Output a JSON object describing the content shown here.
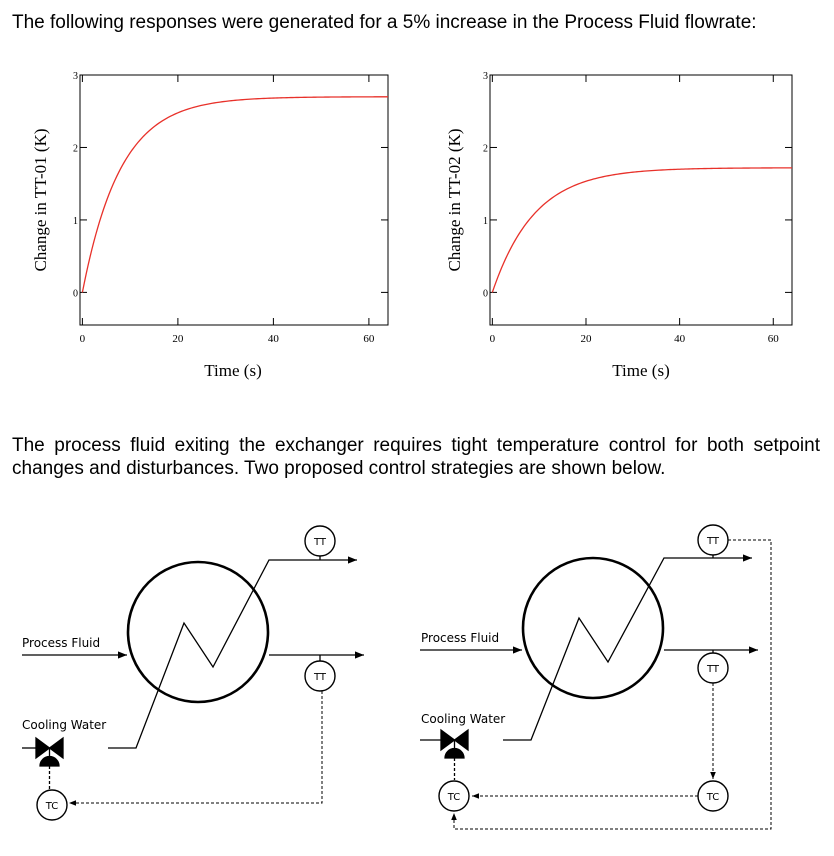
{
  "intro_text": "The following responses were generated for a 5% increase in the Process Fluid flowrate:",
  "strategy_text": "The process fluid exiting the exchanger requires tight temperature control for both setpoint changes and disturbances. Two proposed control strategies are shown below.",
  "chart_data": [
    {
      "type": "line",
      "title": "",
      "xlabel": "Time (s)",
      "ylabel": "Change in TT-01 (K)",
      "xlim": [
        -0.5,
        64
      ],
      "ylim": [
        -0.45,
        3
      ],
      "xticks": [
        0,
        20,
        40,
        60
      ],
      "yticks": [
        0,
        1,
        2,
        3
      ],
      "series": [
        {
          "color": "#e8312a",
          "gain": 2.7,
          "tau": 8,
          "x_end": 64,
          "x": [
            0,
            5,
            10,
            15,
            20,
            30,
            40,
            50,
            60,
            64
          ],
          "y": [
            0,
            1.26,
            1.93,
            2.29,
            2.48,
            2.65,
            2.69,
            2.7,
            2.7,
            2.7
          ]
        }
      ]
    },
    {
      "type": "line",
      "title": "",
      "xlabel": "Time (s)",
      "ylabel": "Change in TT-02 (K)",
      "xlim": [
        -0.5,
        64
      ],
      "ylim": [
        -0.45,
        3
      ],
      "xticks": [
        0,
        20,
        40,
        60
      ],
      "yticks": [
        0,
        1,
        2,
        3
      ],
      "series": [
        {
          "color": "#e8312a",
          "gain": 1.72,
          "tau": 9,
          "x_end": 64,
          "x": [
            0,
            5,
            10,
            15,
            20,
            30,
            40,
            50,
            60,
            64
          ],
          "y": [
            0,
            0.73,
            1.15,
            1.39,
            1.54,
            1.66,
            1.7,
            1.71,
            1.72,
            1.72
          ]
        }
      ]
    }
  ],
  "diagrams": [
    {
      "process_fluid_label": "Process Fluid",
      "cooling_water_label": "Cooling Water",
      "tt_top_label": "TT",
      "tt_mid_label": "TT",
      "tc_label": "TC"
    },
    {
      "process_fluid_label": "Process Fluid",
      "cooling_water_label": "Cooling Water",
      "tt_top_label": "TT",
      "tt_mid_label": "TT",
      "tc_left_label": "TC",
      "tc_right_label": "TC"
    }
  ]
}
